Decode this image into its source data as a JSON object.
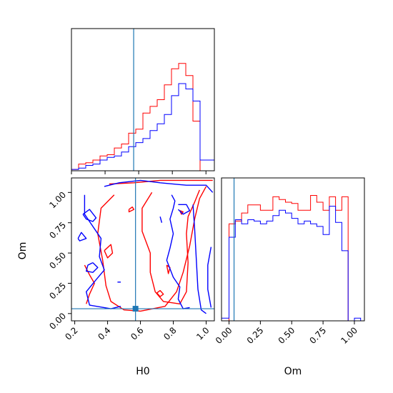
{
  "chart_data": {
    "type": "corner",
    "parameters": [
      "H0",
      "Om"
    ],
    "axis_labels": {
      "x_bottom_left": "H0",
      "x_bottom_right": "Om",
      "y_left": "Om"
    },
    "truth": {
      "H0": 0.57,
      "Om": 0.04
    },
    "colors": {
      "red": "#ff0000",
      "blue": "#0000ff",
      "truth": "#1f77b4",
      "axes": "#000000"
    },
    "H0_hist": {
      "range": [
        0.2,
        1.05
      ],
      "xticks": [
        0.2,
        0.4,
        0.6,
        0.8,
        1.0
      ],
      "xtick_labels": [
        "0.2",
        "0.4",
        "0.6",
        "0.8",
        "1.0"
      ],
      "ylim": [
        0,
        1.06
      ],
      "bin_edges": [
        0.2,
        0.2425,
        0.285,
        0.3275,
        0.37,
        0.4125,
        0.455,
        0.4975,
        0.54,
        0.5825,
        0.625,
        0.6675,
        0.71,
        0.7525,
        0.795,
        0.8375,
        0.88,
        0.9225,
        0.965,
        1.0075,
        1.05
      ],
      "series": [
        {
          "color": "red",
          "values": [
            0.01,
            0.05,
            0.06,
            0.08,
            0.11,
            0.12,
            0.17,
            0.2,
            0.28,
            0.31,
            0.43,
            0.48,
            0.53,
            0.64,
            0.76,
            0.8,
            0.71,
            0.37,
            0.0,
            0.0
          ]
        },
        {
          "color": "blue",
          "values": [
            0.01,
            0.02,
            0.04,
            0.05,
            0.08,
            0.1,
            0.11,
            0.14,
            0.18,
            0.21,
            0.24,
            0.3,
            0.35,
            0.42,
            0.56,
            0.65,
            0.61,
            0.52,
            0.08,
            0.08
          ]
        }
      ]
    },
    "Om_hist": {
      "range": [
        -0.06,
        1.08
      ],
      "xticks": [
        0.0,
        0.25,
        0.5,
        0.75,
        1.0
      ],
      "xtick_labels": [
        "0.00",
        "0.25",
        "0.50",
        "0.75",
        "1.00"
      ],
      "ylim": [
        0,
        1.06
      ],
      "bin_edges": [
        -0.06,
        0.0,
        0.05,
        0.1,
        0.15,
        0.2,
        0.25,
        0.3,
        0.35,
        0.4,
        0.45,
        0.5,
        0.55,
        0.6,
        0.65,
        0.7,
        0.75,
        0.8,
        0.85,
        0.9,
        0.95,
        1.0,
        1.05
      ],
      "series": [
        {
          "color": "red",
          "values": [
            0.0,
            0.72,
            0.74,
            0.8,
            0.86,
            0.86,
            0.82,
            0.82,
            0.92,
            0.9,
            0.88,
            0.87,
            0.82,
            0.82,
            0.93,
            0.88,
            0.82,
            0.92,
            0.82,
            0.92,
            0.0,
            0.0
          ]
        },
        {
          "color": "blue",
          "values": [
            0.02,
            0.62,
            0.75,
            0.72,
            0.75,
            0.74,
            0.72,
            0.74,
            0.78,
            0.82,
            0.8,
            0.76,
            0.72,
            0.74,
            0.72,
            0.7,
            0.64,
            0.85,
            0.73,
            0.52,
            0.0,
            0.02
          ]
        }
      ]
    },
    "joint": {
      "xlim": [
        0.18,
        1.05
      ],
      "ylim": [
        -0.06,
        1.12
      ],
      "xticks": [
        0.2,
        0.4,
        0.6,
        0.8,
        1.0
      ],
      "xtick_labels": [
        "0.2",
        "0.4",
        "0.6",
        "0.8",
        "1.0"
      ],
      "yticks": [
        0.0,
        0.25,
        0.5,
        0.75,
        1.0
      ],
      "ytick_labels": [
        "0.00",
        "0.25",
        "0.50",
        "0.75",
        "1.00"
      ],
      "red_contours": [
        [
          [
            0.41,
            1.07
          ],
          [
            0.56,
            1.08
          ],
          [
            0.72,
            1.1
          ],
          [
            0.93,
            1.1
          ],
          [
            1.04,
            1.1
          ]
        ],
        [
          [
            0.44,
            0.98
          ],
          [
            0.36,
            0.87
          ],
          [
            0.34,
            0.66
          ],
          [
            0.37,
            0.44
          ],
          [
            0.39,
            0.23
          ],
          [
            0.42,
            0.1
          ],
          [
            0.5,
            0.03
          ],
          [
            0.6,
            0.02
          ],
          [
            0.75,
            0.06
          ],
          [
            0.82,
            0.18
          ],
          [
            0.86,
            0.34
          ],
          [
            0.9,
            0.56
          ],
          [
            0.93,
            0.78
          ],
          [
            0.96,
            0.95
          ],
          [
            1.0,
            1.05
          ]
        ],
        [
          [
            0.67,
            1.0
          ],
          [
            0.61,
            0.87
          ],
          [
            0.61,
            0.68
          ],
          [
            0.66,
            0.5
          ],
          [
            0.66,
            0.34
          ],
          [
            0.69,
            0.18
          ],
          [
            0.74,
            0.1
          ],
          [
            0.84,
            0.08
          ],
          [
            0.88,
            0.18
          ],
          [
            0.89,
            0.42
          ],
          [
            0.88,
            0.66
          ],
          [
            0.89,
            0.8
          ],
          [
            0.93,
            0.92
          ],
          [
            0.96,
            1.02
          ]
        ],
        [
          [
            0.26,
            0.4
          ],
          [
            0.29,
            0.32
          ],
          [
            0.32,
            0.25
          ],
          [
            0.29,
            0.16
          ],
          [
            0.27,
            0.08
          ]
        ],
        [
          [
            0.38,
            0.52
          ],
          [
            0.42,
            0.57
          ],
          [
            0.43,
            0.5
          ],
          [
            0.4,
            0.46
          ],
          [
            0.38,
            0.52
          ]
        ],
        [
          [
            0.53,
            0.86
          ],
          [
            0.55,
            0.88
          ],
          [
            0.56,
            0.86
          ],
          [
            0.53,
            0.84
          ],
          [
            0.53,
            0.86
          ]
        ],
        [
          [
            0.76,
            0.4
          ],
          [
            0.78,
            0.38
          ],
          [
            0.77,
            0.33
          ],
          [
            0.76,
            0.4
          ]
        ],
        [
          [
            0.84,
            0.85
          ],
          [
            0.86,
            0.84
          ],
          [
            0.85,
            0.82
          ],
          [
            0.84,
            0.85
          ]
        ],
        [
          [
            0.7,
            0.17
          ],
          [
            0.72,
            0.14
          ],
          [
            0.74,
            0.16
          ],
          [
            0.72,
            0.19
          ],
          [
            0.7,
            0.17
          ]
        ]
      ],
      "blue_contours": [
        [
          [
            0.38,
            1.05
          ],
          [
            0.47,
            1.08
          ],
          [
            0.6,
            1.1
          ],
          [
            0.72,
            1.08
          ],
          [
            0.88,
            1.06
          ],
          [
            1.0,
            1.06
          ],
          [
            1.04,
            1.0
          ]
        ],
        [
          [
            0.26,
            0.98
          ],
          [
            0.26,
            0.82
          ],
          [
            0.32,
            0.7
          ],
          [
            0.36,
            0.62
          ],
          [
            0.35,
            0.47
          ],
          [
            0.38,
            0.36
          ],
          [
            0.33,
            0.28
          ],
          [
            0.27,
            0.18
          ],
          [
            0.29,
            0.07
          ],
          [
            0.42,
            0.04
          ],
          [
            0.48,
            0.06
          ]
        ],
        [
          [
            0.79,
            0.98
          ],
          [
            0.81,
            0.93
          ],
          [
            0.8,
            0.87
          ],
          [
            0.78,
            0.78
          ],
          [
            0.8,
            0.66
          ],
          [
            0.78,
            0.54
          ],
          [
            0.76,
            0.44
          ],
          [
            0.8,
            0.3
          ],
          [
            0.84,
            0.22
          ],
          [
            0.83,
            0.12
          ],
          [
            0.86,
            0.04
          ],
          [
            0.9,
            0.05
          ]
        ],
        [
          [
            0.25,
            0.82
          ],
          [
            0.29,
            0.86
          ],
          [
            0.33,
            0.79
          ],
          [
            0.31,
            0.76
          ],
          [
            0.27,
            0.78
          ],
          [
            0.25,
            0.82
          ]
        ],
        [
          [
            0.22,
            0.62
          ],
          [
            0.24,
            0.67
          ],
          [
            0.27,
            0.62
          ],
          [
            0.23,
            0.6
          ],
          [
            0.22,
            0.62
          ]
        ],
        [
          [
            0.31,
            0.42
          ],
          [
            0.28,
            0.4
          ],
          [
            0.27,
            0.35
          ],
          [
            0.31,
            0.34
          ],
          [
            0.34,
            0.38
          ],
          [
            0.31,
            0.42
          ]
        ],
        [
          [
            0.83,
            0.9
          ],
          [
            0.88,
            0.9
          ],
          [
            0.9,
            0.85
          ],
          [
            0.86,
            0.82
          ],
          [
            0.83,
            0.86
          ]
        ],
        [
          [
            0.72,
            0.8
          ],
          [
            0.73,
            0.75
          ]
        ],
        [
          [
            0.92,
            0.9
          ],
          [
            0.93,
            0.7
          ],
          [
            0.94,
            0.45
          ],
          [
            0.95,
            0.2
          ],
          [
            0.97,
            0.03
          ],
          [
            1.0,
            0.0
          ]
        ],
        [
          [
            1.03,
            0.55
          ],
          [
            1.01,
            0.4
          ],
          [
            1.01,
            0.2
          ],
          [
            1.03,
            0.05
          ]
        ],
        [
          [
            0.46,
            0.26
          ],
          [
            0.48,
            0.26
          ]
        ]
      ]
    }
  }
}
